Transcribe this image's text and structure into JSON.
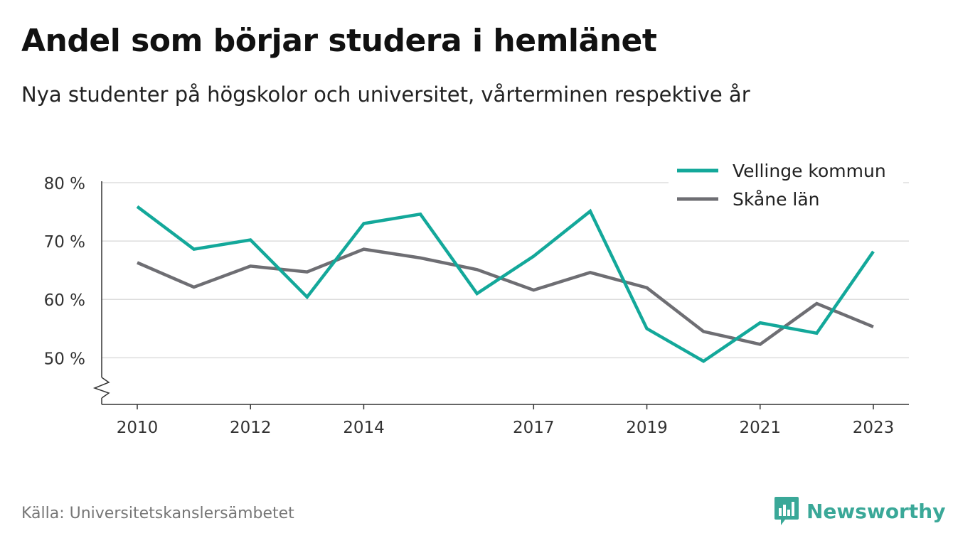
{
  "header": {
    "title": "Andel som börjar studera i hemlänet",
    "subtitle": "Nya studenter på högskolor och universitet, vårterminen respektive år"
  },
  "footer": {
    "source": "Källa: Universitetskanslersämbetet",
    "brand": "Newsworthy"
  },
  "icons": {
    "brand_logo": "chart-bubble-icon"
  },
  "colors": {
    "vellinge": "#13a89a",
    "skane": "#6e6e73",
    "grid": "#dddddd",
    "axis": "#333333",
    "brand": "#3aa898"
  },
  "chart_data": {
    "type": "line",
    "x": [
      2010,
      2011,
      2012,
      2013,
      2014,
      2015,
      2016,
      2017,
      2018,
      2019,
      2020,
      2021,
      2022,
      2023
    ],
    "x_ticks": [
      "2010",
      "2012",
      "2014",
      "2017",
      "2019",
      "2021",
      "2023"
    ],
    "y_ticks": [
      {
        "value": 80,
        "label": "80 %"
      },
      {
        "value": 70,
        "label": "70 %"
      },
      {
        "value": 60,
        "label": "60 %"
      },
      {
        "value": 50,
        "label": "50 %"
      }
    ],
    "ylim": [
      42,
      80
    ],
    "y_axis_break": true,
    "grid": true,
    "legend_position": "top-right",
    "series": [
      {
        "name": "Vellinge kommun",
        "color": "#13a89a",
        "values": [
          75.9,
          68.6,
          70.2,
          60.4,
          73.0,
          74.6,
          61.0,
          67.4,
          75.1,
          55.0,
          49.4,
          56.0,
          54.2,
          68.2
        ]
      },
      {
        "name": "Skåne län",
        "color": "#6e6e73",
        "values": [
          66.3,
          62.1,
          65.7,
          64.7,
          68.6,
          67.1,
          65.1,
          61.6,
          64.6,
          62.0,
          54.5,
          52.3,
          59.3,
          55.3
        ]
      }
    ]
  }
}
